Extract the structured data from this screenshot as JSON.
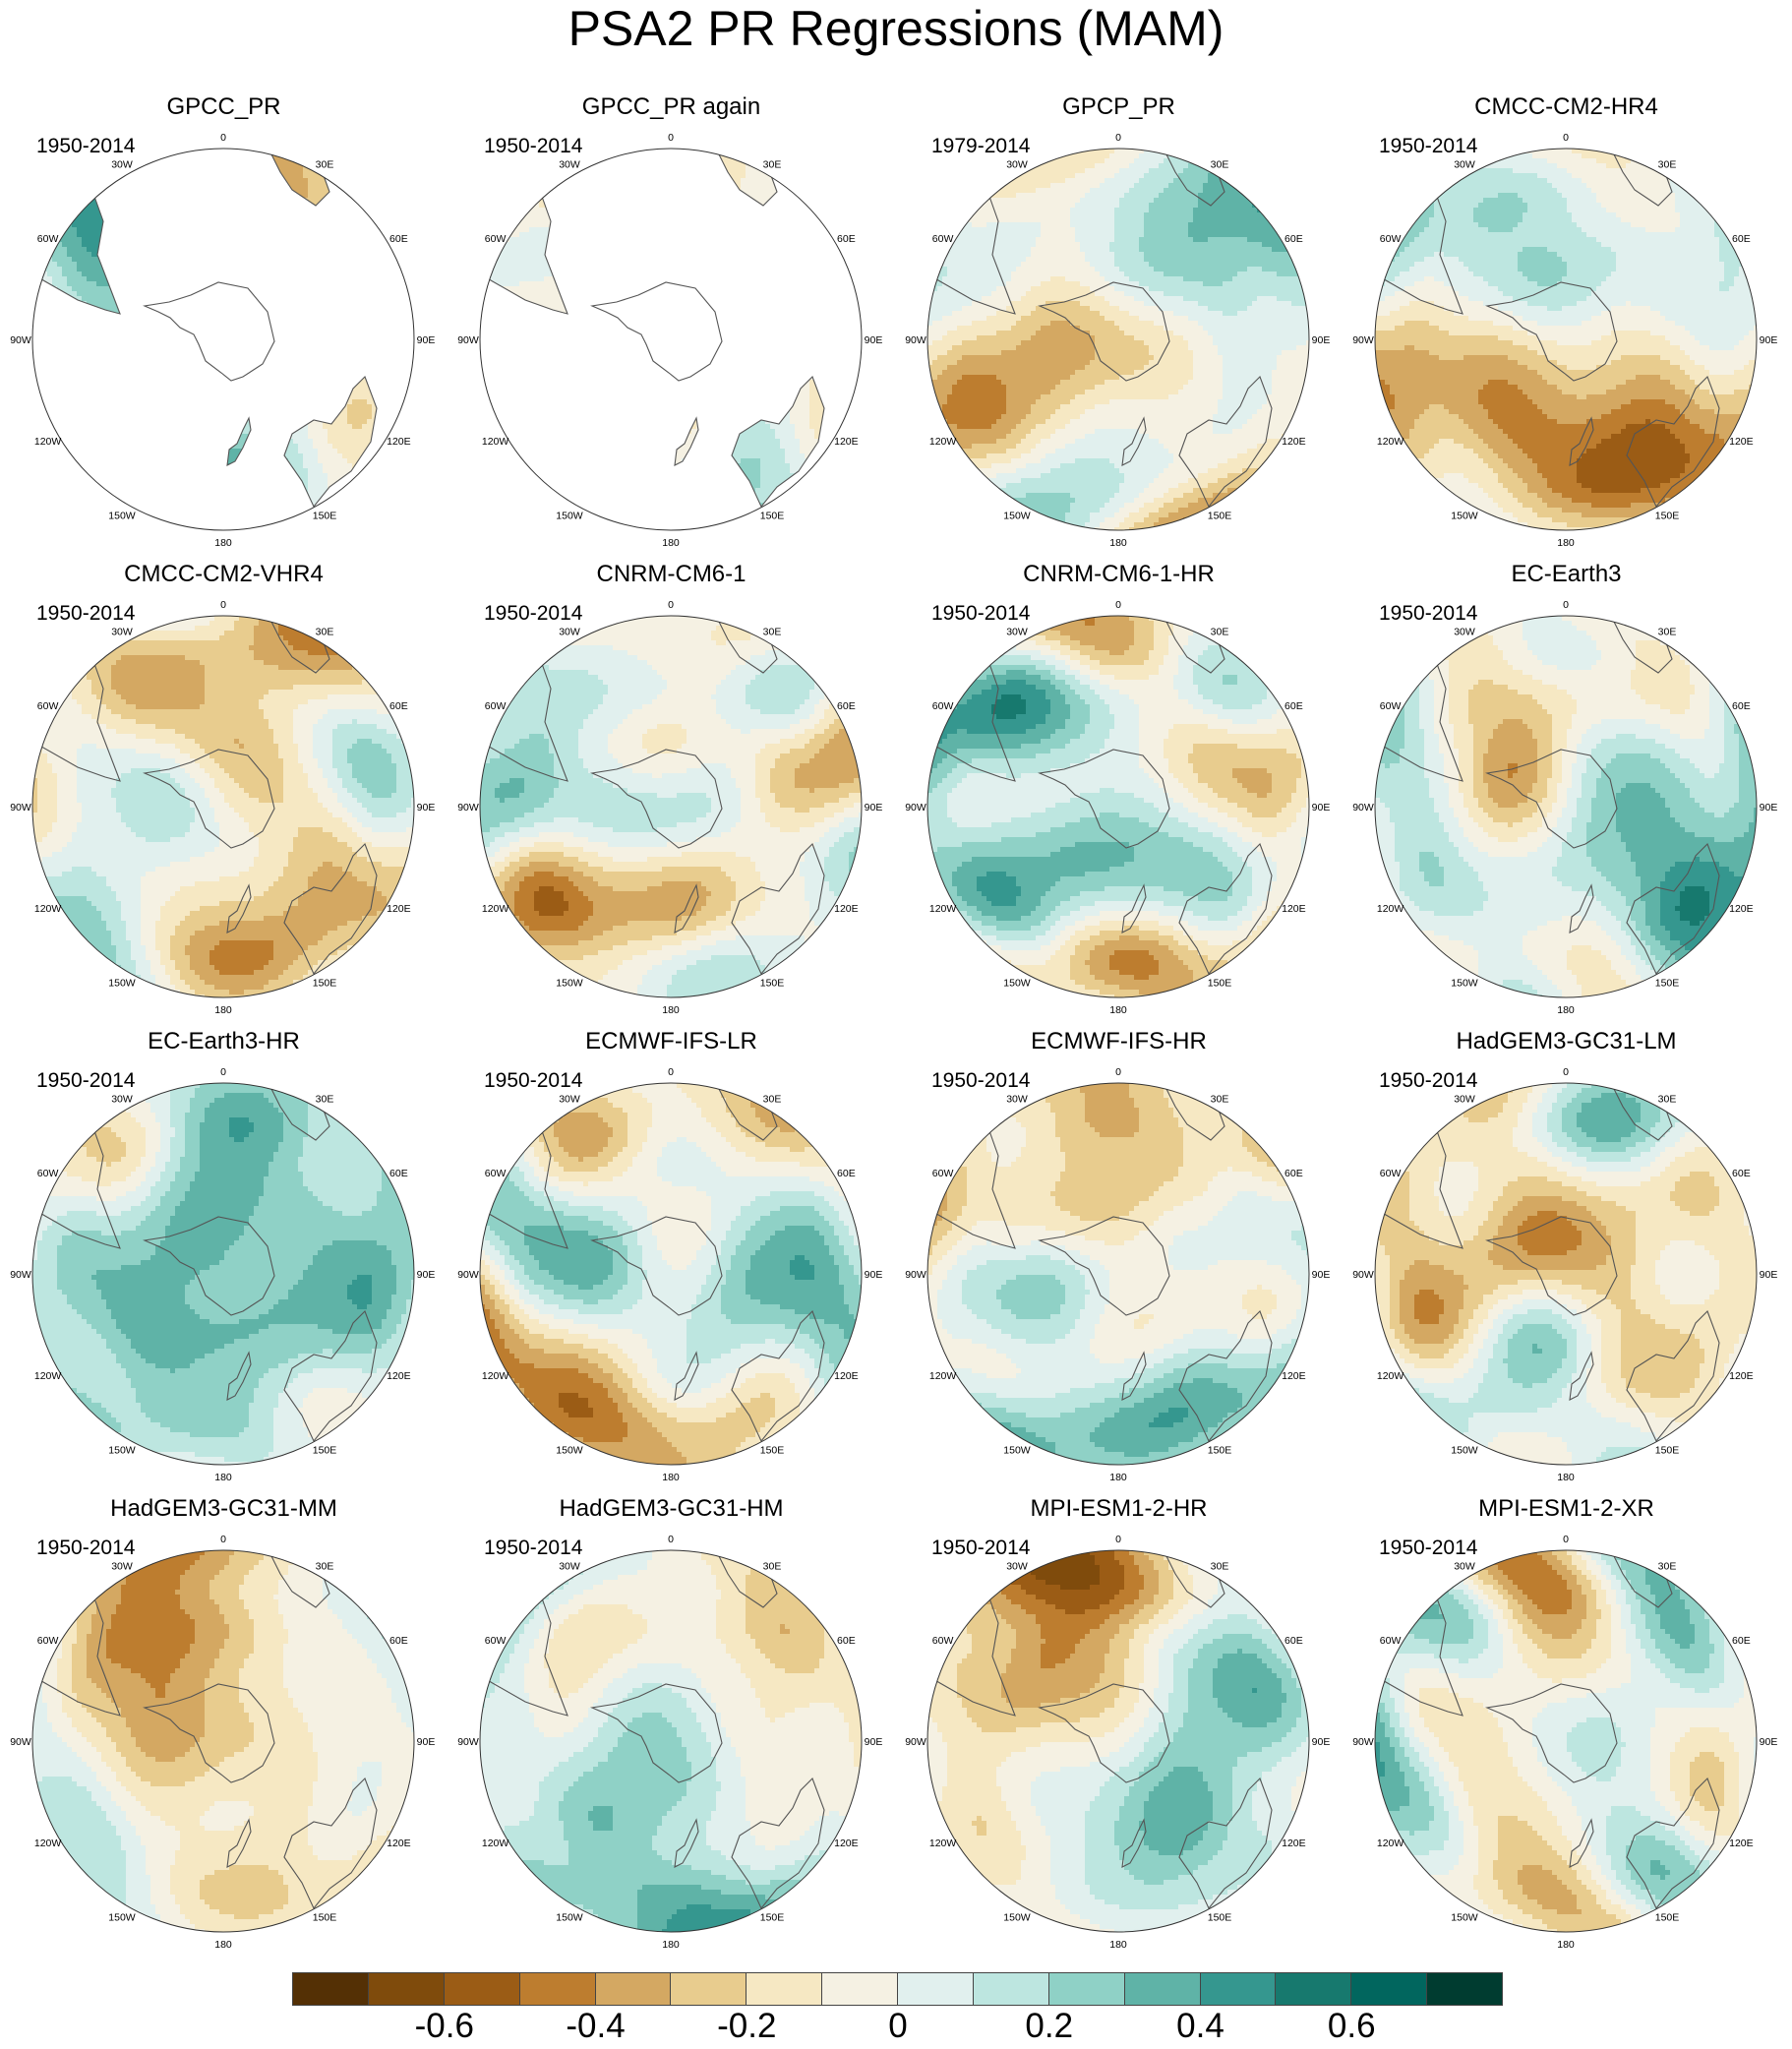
{
  "title": "PSA2 PR Regressions (MAM)",
  "axis_labels": [
    "0",
    "30E",
    "60E",
    "90E",
    "120E",
    "150E",
    "180",
    "150W",
    "120W",
    "90W",
    "60W",
    "30W"
  ],
  "palette": [
    "#543005",
    "#7f4b0c",
    "#9b5c15",
    "#bd7d2f",
    "#d4a862",
    "#e8cc8e",
    "#f6e8c3",
    "#f5f1e3",
    "#e1f0ee",
    "#bde6e0",
    "#8fd1c6",
    "#5fb3a7",
    "#35978f",
    "#17796e",
    "#01665e",
    "#003c30"
  ],
  "colorbar": {
    "labels": [
      "-0.6",
      "-0.4",
      "-0.2",
      "0",
      "0.2",
      "0.4",
      "0.6"
    ],
    "label_values": [
      -0.6,
      -0.4,
      -0.2,
      0,
      0.2,
      0.4,
      0.6
    ]
  },
  "panels": [
    {
      "name": "GPCC_PR",
      "period": "1950-2014",
      "land_only": true,
      "seed": 11
    },
    {
      "name": "GPCC_PR again",
      "period": "1950-2014",
      "land_only": true,
      "seed": 12
    },
    {
      "name": "GPCP_PR",
      "period": "1979-2014",
      "land_only": false,
      "seed": 13
    },
    {
      "name": "CMCC-CM2-HR4",
      "period": "1950-2014",
      "land_only": false,
      "seed": 14
    },
    {
      "name": "CMCC-CM2-VHR4",
      "period": "1950-2014",
      "land_only": false,
      "seed": 15
    },
    {
      "name": "CNRM-CM6-1",
      "period": "1950-2014",
      "land_only": false,
      "seed": 16
    },
    {
      "name": "CNRM-CM6-1-HR",
      "period": "1950-2014",
      "land_only": false,
      "seed": 17
    },
    {
      "name": "EC-Earth3",
      "period": "1950-2014",
      "land_only": false,
      "seed": 18
    },
    {
      "name": "EC-Earth3-HR",
      "period": "1950-2014",
      "land_only": false,
      "seed": 19
    },
    {
      "name": "ECMWF-IFS-LR",
      "period": "1950-2014",
      "land_only": false,
      "seed": 20
    },
    {
      "name": "ECMWF-IFS-HR",
      "period": "1950-2014",
      "land_only": false,
      "seed": 21
    },
    {
      "name": "HadGEM3-GC31-LM",
      "period": "1950-2014",
      "land_only": false,
      "seed": 22
    },
    {
      "name": "HadGEM3-GC31-MM",
      "period": "1950-2014",
      "land_only": false,
      "seed": 23
    },
    {
      "name": "HadGEM3-GC31-HM",
      "period": "1950-2014",
      "land_only": false,
      "seed": 24
    },
    {
      "name": "MPI-ESM1-2-HR",
      "period": "1950-2014",
      "land_only": false,
      "seed": 25
    },
    {
      "name": "MPI-ESM1-2-XR",
      "period": "1950-2014",
      "land_only": false,
      "seed": 26
    }
  ]
}
